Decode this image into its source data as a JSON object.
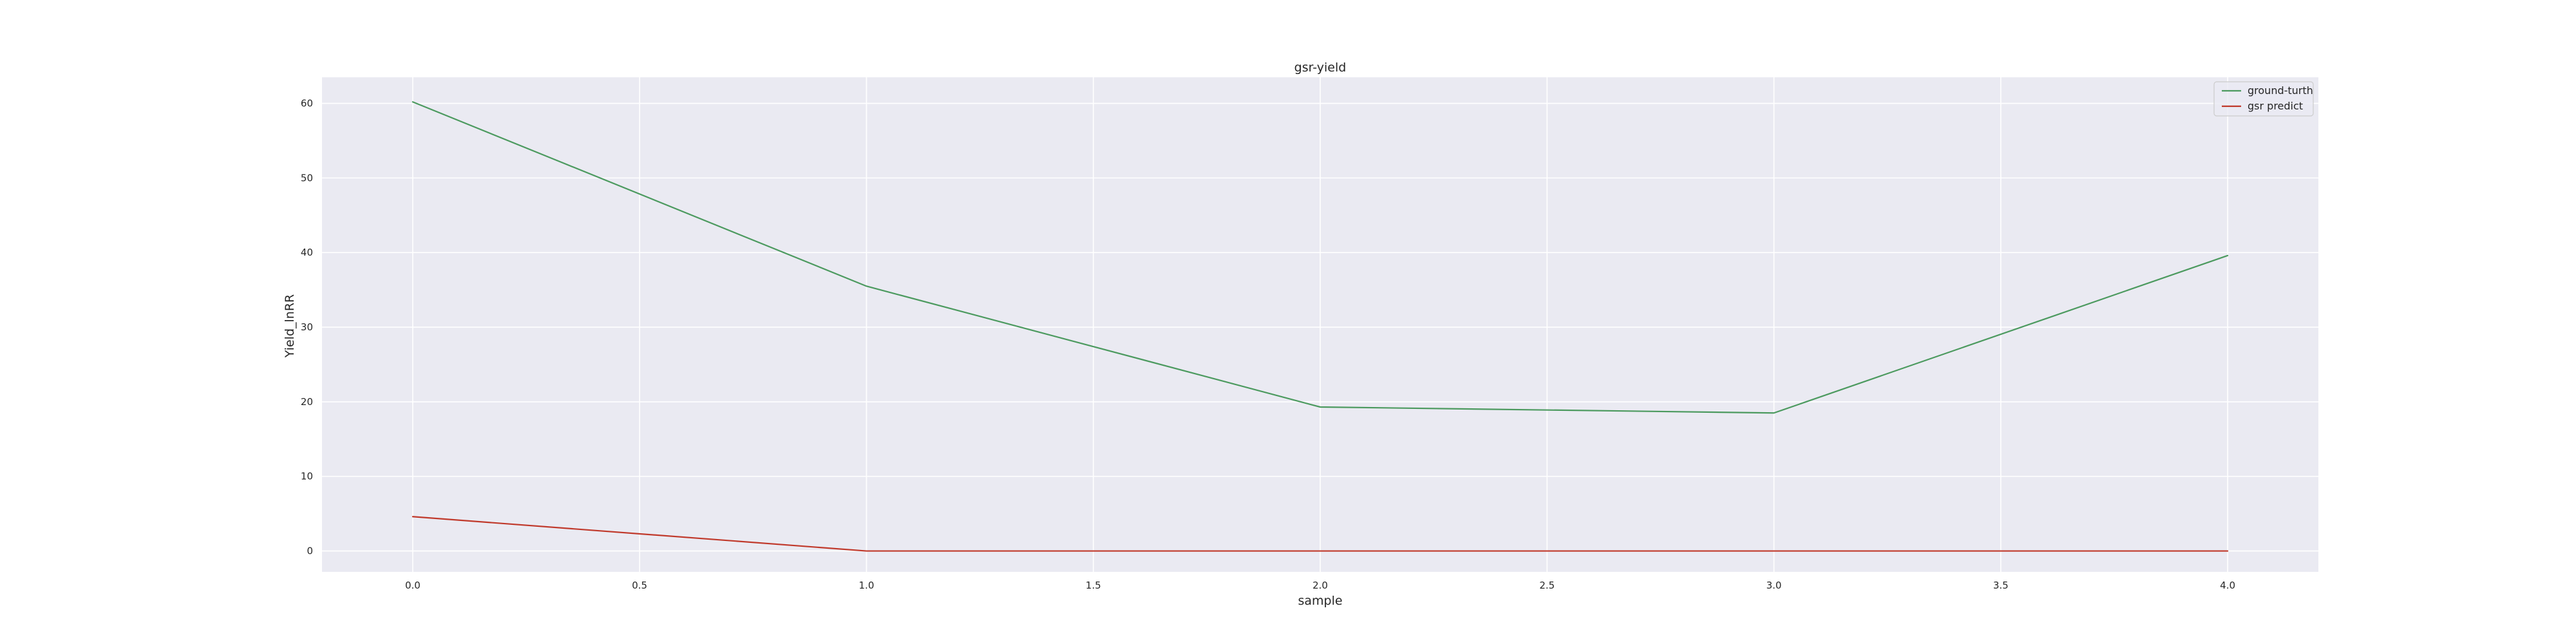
{
  "chart_data": {
    "type": "line",
    "title": "gsr-yield",
    "xlabel": "sample",
    "ylabel": "Yield_lnRR",
    "x": [
      0,
      1,
      2,
      3,
      4
    ],
    "xlim": [
      -0.2,
      4.2
    ],
    "ylim": [
      -2.8,
      63.5
    ],
    "xticks": [
      0,
      0.5,
      1,
      1.5,
      2,
      2.5,
      3,
      3.5,
      4
    ],
    "xtick_labels": [
      "0.0",
      "0.5",
      "1.0",
      "1.5",
      "2.0",
      "2.5",
      "3.0",
      "3.5",
      "4.0"
    ],
    "yticks": [
      0,
      10,
      20,
      30,
      40,
      50,
      60
    ],
    "ytick_labels": [
      "0",
      "10",
      "20",
      "30",
      "40",
      "50",
      "60"
    ],
    "grid": true,
    "legend_position": "top-right",
    "series": [
      {
        "name": "ground-turth",
        "color": "#4c9a5f",
        "values": [
          60.2,
          35.5,
          19.3,
          18.5,
          39.6
        ]
      },
      {
        "name": "gsr predict",
        "color": "#c0392b",
        "values": [
          4.6,
          0.0,
          0.0,
          0.0,
          0.0
        ]
      }
    ],
    "background_color": "#eaeaf2"
  }
}
